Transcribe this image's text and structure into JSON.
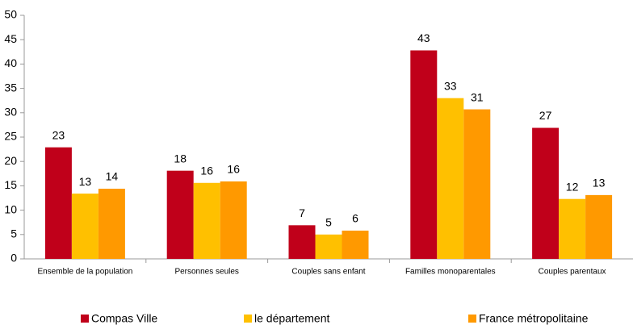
{
  "chart_data": {
    "type": "bar",
    "categories": [
      "Ensemble de la population",
      "Personnes seules",
      "Couples sans enfant",
      "Familles monoparentales",
      "Couples parentaux"
    ],
    "series": [
      {
        "name": "Compas Ville",
        "color": "#c0001a",
        "values": [
          22.9,
          18.1,
          6.9,
          42.8,
          26.9
        ],
        "value_labels": [
          "23",
          "18",
          "7",
          "43",
          "27"
        ]
      },
      {
        "name": "le département",
        "color": "#ffc000",
        "values": [
          13.4,
          15.6,
          5.0,
          33.0,
          12.3
        ],
        "value_labels": [
          "13",
          "16",
          "5",
          "33",
          "12"
        ]
      },
      {
        "name": "France métropolitaine",
        "color": "#ff9900",
        "values": [
          14.4,
          15.9,
          5.8,
          30.7,
          13.1
        ],
        "value_labels": [
          "14",
          "16",
          "6",
          "31",
          "13"
        ]
      }
    ],
    "ylim": [
      0,
      50
    ],
    "yticks": [
      0,
      5,
      10,
      15,
      20,
      25,
      30,
      35,
      40,
      45,
      50
    ],
    "grid": false,
    "legend": "bottom"
  }
}
